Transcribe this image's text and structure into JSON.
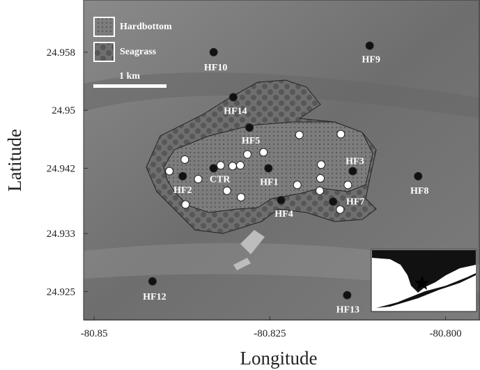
{
  "chart_data": {
    "type": "scatter",
    "xlabel": "Longitude",
    "ylabel": "Latitude",
    "xlim": [
      -80.8515,
      -80.7951
    ],
    "ylim": [
      24.921,
      24.9652
    ],
    "xticks": [
      -80.85,
      -80.825,
      {
        "value": -80.8,
        "label": "-80.800"
      }
    ],
    "yticks": [
      24.958,
      24.95,
      24.942,
      24.933,
      24.925
    ],
    "legend_entries": [
      "Hardbottom",
      "Seagrass"
    ],
    "scale_bar": "1 km",
    "series": [
      {
        "color": "#111111",
        "labels": [
          "HF10",
          "HF9",
          "HF14",
          "HF5",
          "HF1",
          "HF3",
          "HF8",
          "HF4",
          "HF7",
          "CTR",
          "HF2",
          "HF12",
          "HF13"
        ],
        "x": [
          -80.833,
          -80.8108,
          -80.8302,
          -80.8279,
          -80.8252,
          -80.8132,
          -80.8039,
          -80.8234,
          -80.816,
          -80.833,
          -80.8374,
          -80.8417,
          -80.814
        ],
        "y": [
          24.958,
          24.9589,
          24.9518,
          24.9476,
          24.942,
          24.9416,
          24.9409,
          24.9376,
          24.9374,
          24.942,
          24.9409,
          24.9264,
          24.9245
        ]
      },
      {
        "color": "#ffffff",
        "x": [
          -80.8371,
          -80.8393,
          -80.8352,
          -80.837,
          -80.832,
          -80.8303,
          -80.8292,
          -80.8282,
          -80.8259,
          -80.8311,
          -80.8291,
          -80.8208,
          -80.8149,
          -80.8177,
          -80.8178,
          -80.8179,
          -80.8211,
          -80.8139,
          -80.815
        ],
        "y": [
          24.9432,
          24.9416,
          24.9405,
          24.937,
          24.9424,
          24.9423,
          24.9424,
          24.9439,
          24.9442,
          24.9389,
          24.938,
          24.9466,
          24.9467,
          24.9425,
          24.9406,
          24.9389,
          24.9397,
          24.9397,
          24.9363
        ]
      }
    ]
  }
}
